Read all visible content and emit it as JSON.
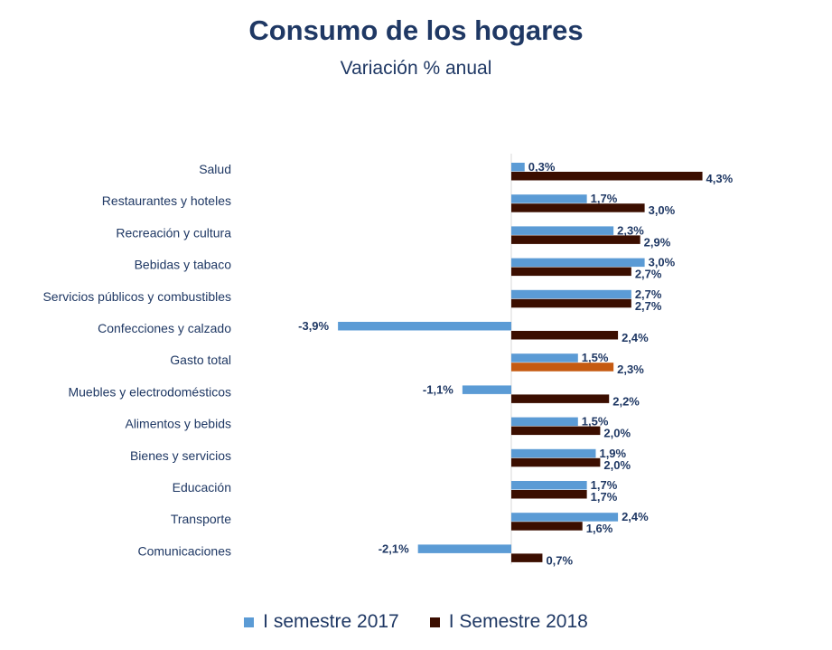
{
  "chart_data": {
    "type": "bar",
    "orientation": "horizontal",
    "title": "Consumo de los hogares",
    "subtitle": "Variación % anual",
    "categories": [
      "Salud",
      "Restaurantes y hoteles",
      "Recreación y cultura",
      "Bebidas y tabaco",
      "Servicios públicos y combustibles",
      "Confecciones y calzado",
      "Gasto total",
      "Muebles y electrodomésticos",
      "Alimentos y bebids",
      "Bienes y servicios",
      "Educación",
      "Transporte",
      "Comunicaciones"
    ],
    "highlight_category": "Gasto total",
    "series": [
      {
        "name": "I semestre 2017",
        "color": "#5b9bd5",
        "values": [
          0.3,
          1.7,
          2.3,
          3.0,
          2.7,
          -3.9,
          1.5,
          -1.1,
          1.5,
          1.9,
          1.7,
          2.4,
          -2.1
        ],
        "labels": [
          "0,3%",
          "1,7%",
          "2,3%",
          "3,0%",
          "2,7%",
          "-3,9%",
          "1,5%",
          "-1,1%",
          "1,5%",
          "1,9%",
          "1,7%",
          "2,4%",
          "-2,1%"
        ]
      },
      {
        "name": "I Semestre 2018",
        "color": "#3b0e00",
        "highlight_color": "#c55a11",
        "values": [
          4.3,
          3.0,
          2.9,
          2.7,
          2.7,
          2.4,
          2.3,
          2.2,
          2.0,
          2.0,
          1.7,
          1.6,
          0.7
        ],
        "labels": [
          "4,3%",
          "3,0%",
          "2,9%",
          "2,7%",
          "2,7%",
          "2,4%",
          "2,3%",
          "2,2%",
          "2,0%",
          "2,0%",
          "1,7%",
          "1,6%",
          "0,7%"
        ]
      }
    ],
    "xlim": [
      -4.0,
      4.5
    ],
    "grid": false,
    "legend_position": "bottom",
    "text_color": "#1f3864"
  }
}
